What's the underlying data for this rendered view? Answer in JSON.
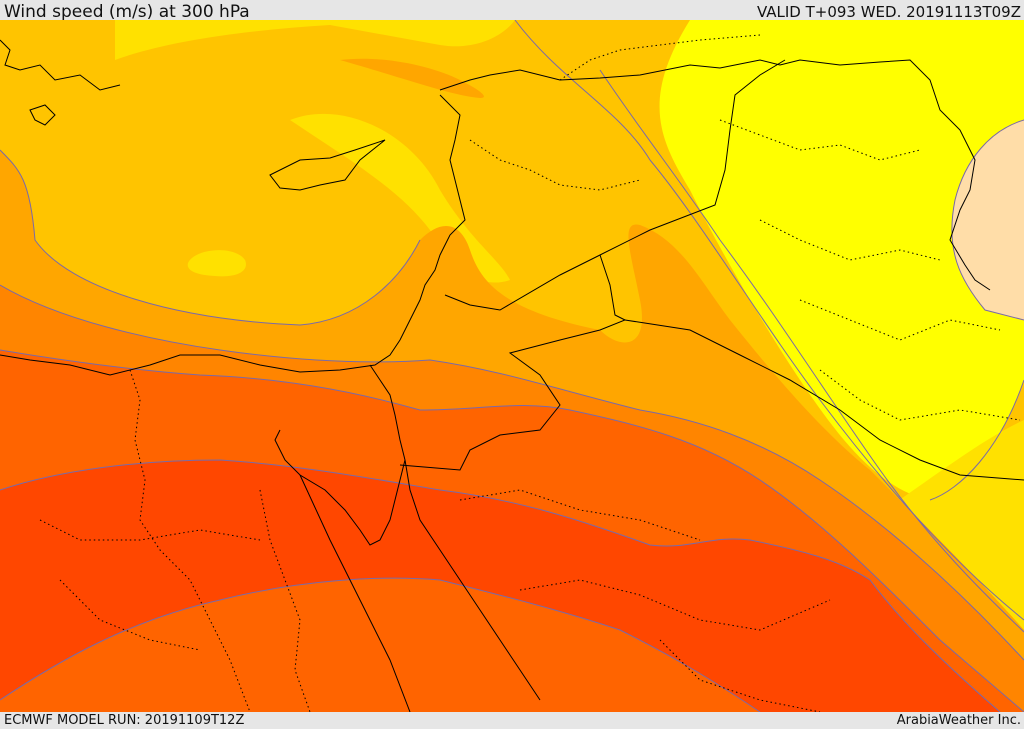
{
  "header": {
    "title": "Wind speed (m/s) at 300 hPa",
    "valid": "VALID T+093 WED. 20191113T09Z"
  },
  "footer": {
    "model_run": "ECMWF MODEL RUN: 20191109T12Z",
    "credit": "ArabiaWeather Inc."
  },
  "colors": {
    "band_light_yellow": "#ffff00",
    "band_yellow": "#ffe100",
    "band_gold": "#ffc400",
    "band_amber": "#ffa600",
    "band_orange": "#ff8500",
    "band_dark_orange": "#ff6400",
    "band_red_orange": "#ff4700",
    "band_tan": "#ffdda8",
    "isotach_line": "#7a6aa8",
    "border_line": "#000000"
  }
}
